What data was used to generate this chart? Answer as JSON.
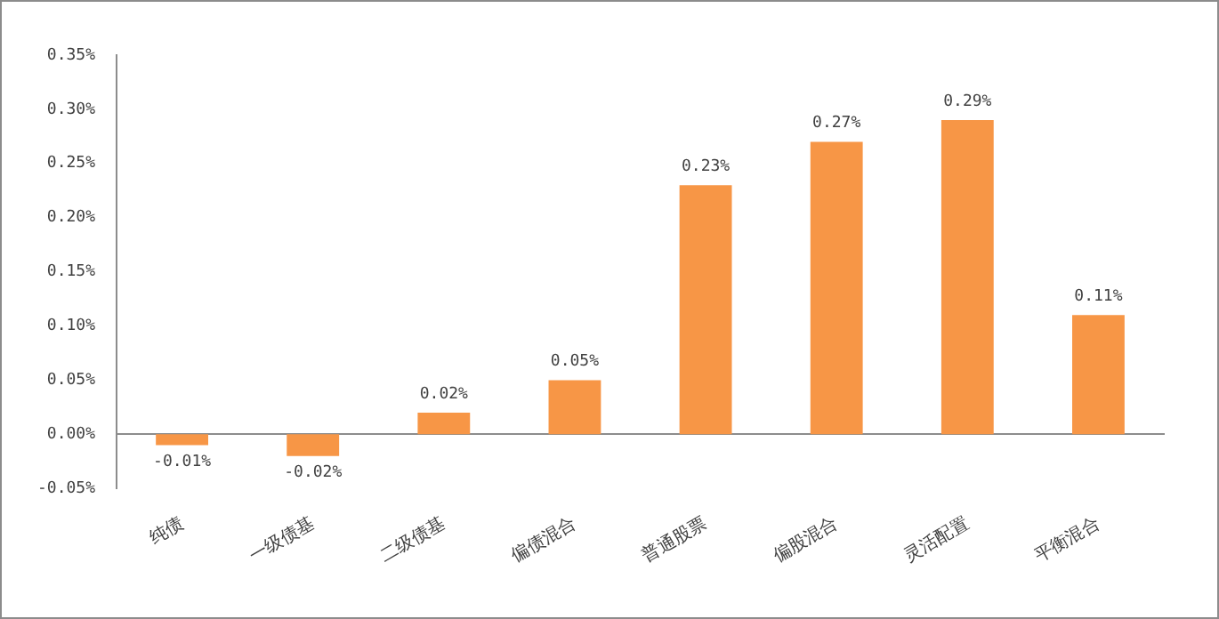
{
  "chart_data": {
    "type": "bar",
    "categories": [
      "纯债",
      "一级债基",
      "二级债基",
      "偏债混合",
      "普通股票",
      "偏股混合",
      "灵活配置",
      "平衡混合"
    ],
    "values": [
      -0.01,
      -0.02,
      0.02,
      0.05,
      0.23,
      0.27,
      0.29,
      0.11
    ],
    "value_labels": [
      "-0.01%",
      "-0.02%",
      "0.02%",
      "0.05%",
      "0.23%",
      "0.27%",
      "0.29%",
      "0.11%"
    ],
    "color": "#f79646",
    "ylim": [
      -0.05,
      0.35
    ],
    "yticks": [
      {
        "value": -0.05,
        "label": "-0.05%"
      },
      {
        "value": 0,
        "label": "0.00%"
      },
      {
        "value": 0.05,
        "label": "0.05%"
      },
      {
        "value": 0.1,
        "label": "0.10%"
      },
      {
        "value": 0.15,
        "label": "0.15%"
      },
      {
        "value": 0.2,
        "label": "0.20%"
      },
      {
        "value": 0.25,
        "label": "0.25%"
      },
      {
        "value": 0.3,
        "label": "0.30%"
      },
      {
        "value": 0.35,
        "label": "0.35%"
      }
    ],
    "legend": false
  }
}
